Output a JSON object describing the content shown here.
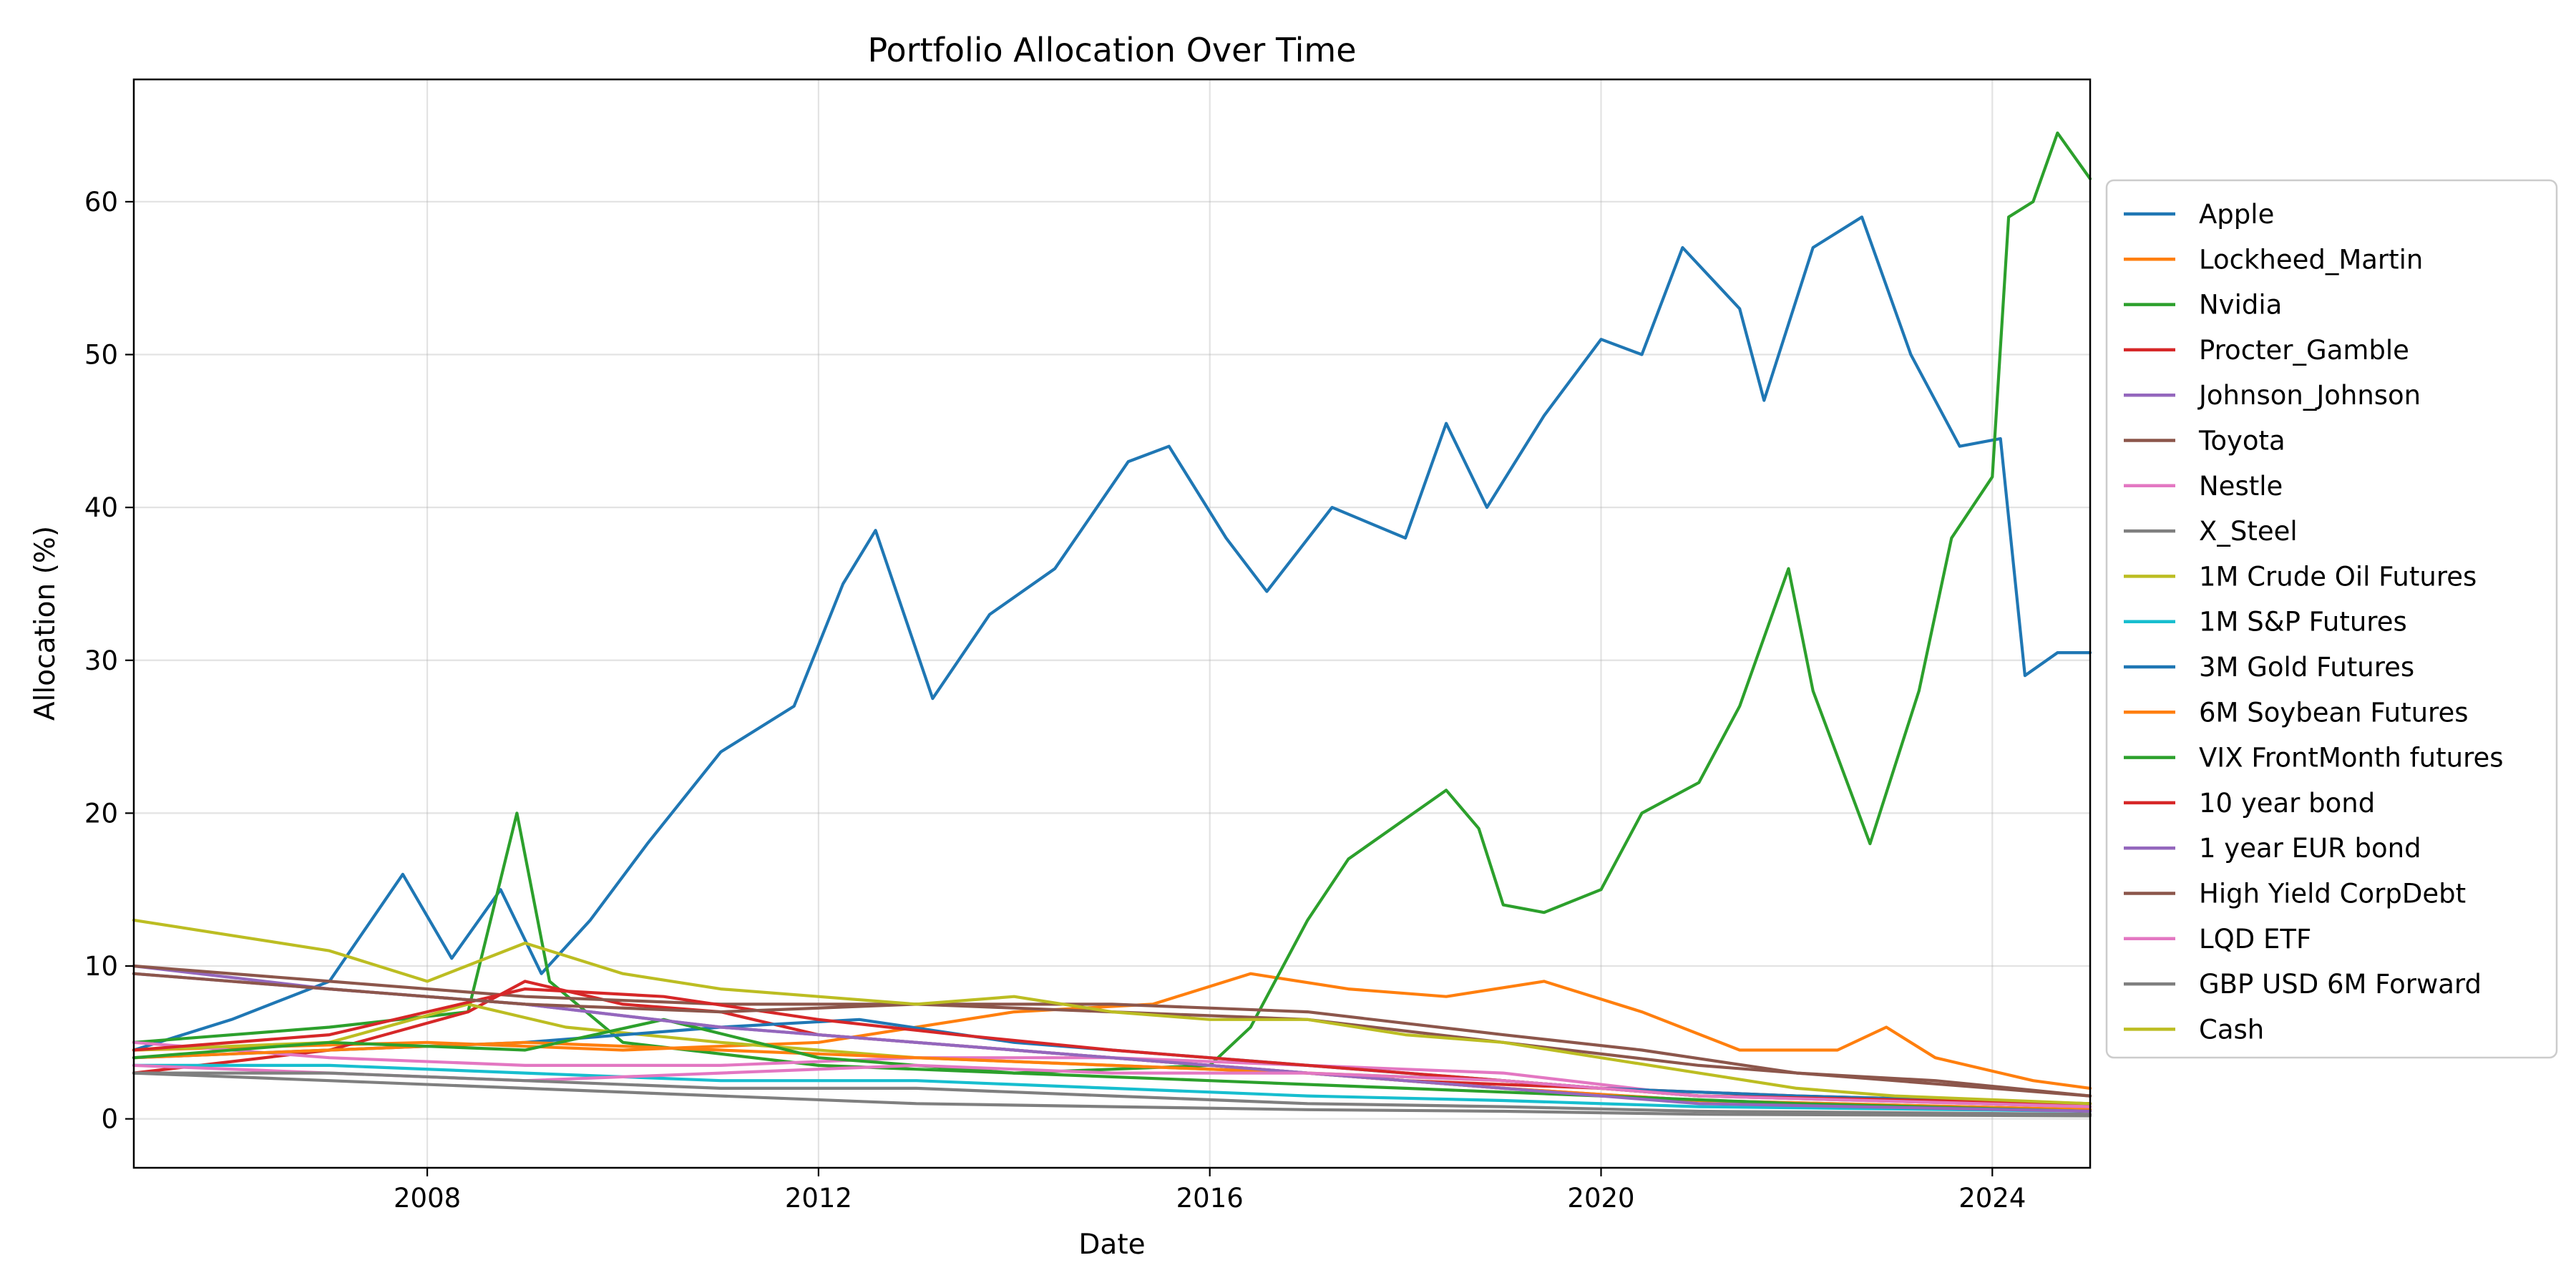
{
  "chart_data": {
    "type": "line",
    "title": "Portfolio Allocation Over Time",
    "xlabel": "Date",
    "ylabel": "Allocation (%)",
    "xlim": [
      "2005-01-01",
      "2025-01-01"
    ],
    "ylim": [
      0,
      68
    ],
    "x_ticks": [
      "2008",
      "2012",
      "2016",
      "2020",
      "2024"
    ],
    "y_ticks": [
      0,
      10,
      20,
      30,
      40,
      50,
      60
    ],
    "grid": true,
    "legend_position": "outside-right",
    "series": [
      {
        "name": "Apple",
        "color": "#1f77b4",
        "points": [
          [
            "2005-01",
            4.5
          ],
          [
            "2006-01",
            6.5
          ],
          [
            "2007-01",
            9.0
          ],
          [
            "2007-10",
            16.0
          ],
          [
            "2008-04",
            10.5
          ],
          [
            "2008-10",
            15.0
          ],
          [
            "2009-03",
            9.5
          ],
          [
            "2009-09",
            13.0
          ],
          [
            "2010-04",
            18.0
          ],
          [
            "2011-01",
            24.0
          ],
          [
            "2011-10",
            27.0
          ],
          [
            "2012-04",
            35.0
          ],
          [
            "2012-08",
            38.5
          ],
          [
            "2013-03",
            27.5
          ],
          [
            "2013-10",
            33.0
          ],
          [
            "2014-06",
            36.0
          ],
          [
            "2015-03",
            43.0
          ],
          [
            "2015-08",
            44.0
          ],
          [
            "2016-03",
            38.0
          ],
          [
            "2016-08",
            34.5
          ],
          [
            "2017-04",
            40.0
          ],
          [
            "2018-01",
            38.0
          ],
          [
            "2018-06",
            45.5
          ],
          [
            "2018-11",
            40.0
          ],
          [
            "2019-06",
            46.0
          ],
          [
            "2020-01",
            51.0
          ],
          [
            "2020-06",
            50.0
          ],
          [
            "2020-11",
            57.0
          ],
          [
            "2021-06",
            53.0
          ],
          [
            "2021-09",
            47.0
          ],
          [
            "2022-03",
            57.0
          ],
          [
            "2022-09",
            59.0
          ],
          [
            "2023-03",
            50.0
          ],
          [
            "2023-09",
            44.0
          ],
          [
            "2024-02",
            44.5
          ],
          [
            "2024-05",
            29.0
          ],
          [
            "2024-09",
            30.5
          ],
          [
            "2025-01",
            30.5
          ]
        ]
      },
      {
        "name": "Lockheed_Martin",
        "color": "#ff7f0e",
        "points": [
          [
            "2005-01",
            4.5
          ],
          [
            "2008-01",
            5.0
          ],
          [
            "2010-01",
            4.5
          ],
          [
            "2012-01",
            5.0
          ],
          [
            "2014-01",
            7.0
          ],
          [
            "2015-06",
            7.5
          ],
          [
            "2016-06",
            9.5
          ],
          [
            "2017-06",
            8.5
          ],
          [
            "2018-06",
            8.0
          ],
          [
            "2019-06",
            9.0
          ],
          [
            "2020-06",
            7.0
          ],
          [
            "2021-06",
            4.5
          ],
          [
            "2022-06",
            4.5
          ],
          [
            "2022-12",
            6.0
          ],
          [
            "2023-06",
            4.0
          ],
          [
            "2024-06",
            2.5
          ],
          [
            "2025-01",
            2.0
          ]
        ]
      },
      {
        "name": "Nvidia",
        "color": "#2ca02c",
        "points": [
          [
            "2005-01",
            5.0
          ],
          [
            "2007-01",
            6.0
          ],
          [
            "2008-06",
            7.0
          ],
          [
            "2008-12",
            20.0
          ],
          [
            "2009-04",
            9.0
          ],
          [
            "2010-01",
            5.0
          ],
          [
            "2012-01",
            3.5
          ],
          [
            "2014-01",
            3.0
          ],
          [
            "2016-01",
            3.5
          ],
          [
            "2016-06",
            6.0
          ],
          [
            "2017-01",
            13.0
          ],
          [
            "2017-06",
            17.0
          ],
          [
            "2018-06",
            21.5
          ],
          [
            "2018-10",
            19.0
          ],
          [
            "2019-01",
            14.0
          ],
          [
            "2019-06",
            13.5
          ],
          [
            "2020-01",
            15.0
          ],
          [
            "2020-06",
            20.0
          ],
          [
            "2021-01",
            22.0
          ],
          [
            "2021-06",
            27.0
          ],
          [
            "2021-12",
            36.0
          ],
          [
            "2022-03",
            28.0
          ],
          [
            "2022-10",
            18.0
          ],
          [
            "2023-04",
            28.0
          ],
          [
            "2023-08",
            38.0
          ],
          [
            "2024-01",
            42.0
          ],
          [
            "2024-03",
            59.0
          ],
          [
            "2024-06",
            60.0
          ],
          [
            "2024-09",
            64.5
          ],
          [
            "2025-01",
            61.5
          ]
        ]
      },
      {
        "name": "Procter_Gamble",
        "color": "#d62728",
        "points": [
          [
            "2005-01",
            3.0
          ],
          [
            "2007-01",
            4.5
          ],
          [
            "2008-06",
            7.0
          ],
          [
            "2009-01",
            9.0
          ],
          [
            "2010-01",
            7.5
          ],
          [
            "2011-01",
            7.0
          ],
          [
            "2012-01",
            5.5
          ],
          [
            "2013-01",
            5.0
          ],
          [
            "2014-01",
            4.5
          ],
          [
            "2016-01",
            3.5
          ],
          [
            "2018-01",
            2.5
          ],
          [
            "2020-01",
            2.0
          ],
          [
            "2022-01",
            1.5
          ],
          [
            "2025-01",
            1.0
          ]
        ]
      },
      {
        "name": "Johnson_Johnson",
        "color": "#9467bd",
        "points": [
          [
            "2005-01",
            10.0
          ],
          [
            "2007-01",
            8.5
          ],
          [
            "2009-01",
            7.5
          ],
          [
            "2011-01",
            6.0
          ],
          [
            "2013-01",
            5.0
          ],
          [
            "2015-01",
            4.0
          ],
          [
            "2017-01",
            3.0
          ],
          [
            "2019-01",
            2.0
          ],
          [
            "2021-01",
            1.2
          ],
          [
            "2025-01",
            0.6
          ]
        ]
      },
      {
        "name": "Toyota",
        "color": "#8c564b",
        "points": [
          [
            "2005-01",
            10.0
          ],
          [
            "2007-01",
            9.0
          ],
          [
            "2009-01",
            8.0
          ],
          [
            "2011-01",
            7.5
          ],
          [
            "2013-01",
            7.5
          ],
          [
            "2015-01",
            7.5
          ],
          [
            "2017-01",
            7.0
          ],
          [
            "2019-01",
            5.5
          ],
          [
            "2020-06",
            4.5
          ],
          [
            "2022-01",
            3.0
          ],
          [
            "2023-06",
            2.5
          ],
          [
            "2025-01",
            1.5
          ]
        ]
      },
      {
        "name": "Nestle",
        "color": "#e377c2",
        "points": [
          [
            "2005-01",
            5.0
          ],
          [
            "2007-01",
            4.0
          ],
          [
            "2009-01",
            3.5
          ],
          [
            "2011-01",
            3.5
          ],
          [
            "2013-01",
            4.0
          ],
          [
            "2015-01",
            4.0
          ],
          [
            "2017-01",
            3.5
          ],
          [
            "2019-01",
            3.0
          ],
          [
            "2021-01",
            1.5
          ],
          [
            "2025-01",
            0.8
          ]
        ]
      },
      {
        "name": "X_Steel",
        "color": "#7f7f7f",
        "points": [
          [
            "2005-01",
            3.0
          ],
          [
            "2007-01",
            2.5
          ],
          [
            "2009-01",
            2.0
          ],
          [
            "2011-01",
            1.5
          ],
          [
            "2013-01",
            1.0
          ],
          [
            "2015-01",
            0.8
          ],
          [
            "2017-01",
            0.6
          ],
          [
            "2019-01",
            0.5
          ],
          [
            "2021-01",
            0.3
          ],
          [
            "2025-01",
            0.2
          ]
        ]
      },
      {
        "name": "1M Crude Oil Futures",
        "color": "#bcbd22",
        "points": [
          [
            "2005-01",
            4.5
          ],
          [
            "2007-01",
            5.0
          ],
          [
            "2008-06",
            7.5
          ],
          [
            "2009-06",
            6.0
          ],
          [
            "2011-01",
            5.0
          ],
          [
            "2013-01",
            4.0
          ],
          [
            "2015-01",
            3.5
          ],
          [
            "2017-01",
            3.0
          ],
          [
            "2019-01",
            2.5
          ],
          [
            "2021-01",
            1.5
          ],
          [
            "2025-01",
            0.8
          ]
        ]
      },
      {
        "name": "1M S&P Futures",
        "color": "#17becf",
        "points": [
          [
            "2005-01",
            3.5
          ],
          [
            "2007-01",
            3.5
          ],
          [
            "2009-01",
            3.0
          ],
          [
            "2011-01",
            2.5
          ],
          [
            "2013-01",
            2.5
          ],
          [
            "2015-01",
            2.0
          ],
          [
            "2017-01",
            1.5
          ],
          [
            "2019-01",
            1.2
          ],
          [
            "2021-01",
            0.8
          ],
          [
            "2025-01",
            0.5
          ]
        ]
      },
      {
        "name": "3M Gold Futures",
        "color": "#1f77b4",
        "points": [
          [
            "2005-01",
            4.0
          ],
          [
            "2007-01",
            4.5
          ],
          [
            "2009-01",
            5.0
          ],
          [
            "2011-01",
            6.0
          ],
          [
            "2012-06",
            6.5
          ],
          [
            "2014-01",
            5.0
          ],
          [
            "2016-01",
            4.0
          ],
          [
            "2018-01",
            3.0
          ],
          [
            "2020-01",
            2.0
          ],
          [
            "2022-01",
            1.5
          ],
          [
            "2025-01",
            1.0
          ]
        ]
      },
      {
        "name": "6M Soybean Futures",
        "color": "#ff7f0e",
        "points": [
          [
            "2005-01",
            4.0
          ],
          [
            "2007-01",
            4.5
          ],
          [
            "2009-01",
            5.0
          ],
          [
            "2011-01",
            4.5
          ],
          [
            "2013-01",
            4.0
          ],
          [
            "2015-01",
            3.5
          ],
          [
            "2017-01",
            3.0
          ],
          [
            "2019-01",
            2.0
          ],
          [
            "2021-01",
            1.2
          ],
          [
            "2025-01",
            0.6
          ]
        ]
      },
      {
        "name": "VIX FrontMonth futures",
        "color": "#2ca02c",
        "points": [
          [
            "2005-01",
            4.0
          ],
          [
            "2007-01",
            5.0
          ],
          [
            "2009-01",
            4.5
          ],
          [
            "2010-06",
            6.5
          ],
          [
            "2012-01",
            4.0
          ],
          [
            "2014-01",
            3.0
          ],
          [
            "2016-01",
            2.5
          ],
          [
            "2018-01",
            2.0
          ],
          [
            "2020-01",
            1.5
          ],
          [
            "2022-01",
            1.0
          ],
          [
            "2025-01",
            0.5
          ]
        ]
      },
      {
        "name": "10 year bond",
        "color": "#d62728",
        "points": [
          [
            "2005-01",
            4.5
          ],
          [
            "2007-01",
            5.5
          ],
          [
            "2009-01",
            8.5
          ],
          [
            "2010-06",
            8.0
          ],
          [
            "2012-01",
            6.5
          ],
          [
            "2013-06",
            5.5
          ],
          [
            "2015-01",
            4.5
          ],
          [
            "2017-01",
            3.5
          ],
          [
            "2019-01",
            2.5
          ],
          [
            "2021-01",
            1.5
          ],
          [
            "2025-01",
            1.0
          ]
        ]
      },
      {
        "name": "1 year EUR bond",
        "color": "#9467bd",
        "points": [
          [
            "2005-01",
            9.5
          ],
          [
            "2007-01",
            8.5
          ],
          [
            "2009-01",
            7.5
          ],
          [
            "2011-01",
            6.0
          ],
          [
            "2013-01",
            5.0
          ],
          [
            "2015-01",
            4.0
          ],
          [
            "2017-01",
            3.0
          ],
          [
            "2019-01",
            2.0
          ],
          [
            "2021-01",
            1.0
          ],
          [
            "2025-01",
            0.5
          ]
        ]
      },
      {
        "name": "High Yield CorpDebt",
        "color": "#8c564b",
        "points": [
          [
            "2005-01",
            9.5
          ],
          [
            "2007-01",
            8.5
          ],
          [
            "2009-01",
            7.5
          ],
          [
            "2011-01",
            7.0
          ],
          [
            "2013-01",
            7.5
          ],
          [
            "2015-01",
            7.0
          ],
          [
            "2017-01",
            6.5
          ],
          [
            "2019-01",
            5.0
          ],
          [
            "2021-01",
            3.5
          ],
          [
            "2023-01",
            2.5
          ],
          [
            "2025-01",
            1.5
          ]
        ]
      },
      {
        "name": "LQD ETF",
        "color": "#e377c2",
        "points": [
          [
            "2005-01",
            3.5
          ],
          [
            "2007-01",
            3.0
          ],
          [
            "2009-01",
            2.5
          ],
          [
            "2011-01",
            3.0
          ],
          [
            "2013-01",
            3.5
          ],
          [
            "2015-01",
            3.0
          ],
          [
            "2017-01",
            3.0
          ],
          [
            "2019-01",
            2.5
          ],
          [
            "2021-01",
            1.5
          ],
          [
            "2025-01",
            0.8
          ]
        ]
      },
      {
        "name": "GBP USD 6M Forward",
        "color": "#7f7f7f",
        "points": [
          [
            "2005-01",
            3.0
          ],
          [
            "2007-01",
            3.0
          ],
          [
            "2009-01",
            2.5
          ],
          [
            "2011-01",
            2.0
          ],
          [
            "2013-01",
            2.0
          ],
          [
            "2015-01",
            1.5
          ],
          [
            "2017-01",
            1.0
          ],
          [
            "2019-01",
            0.8
          ],
          [
            "2021-01",
            0.5
          ],
          [
            "2025-01",
            0.3
          ]
        ]
      },
      {
        "name": "Cash",
        "color": "#bcbd22",
        "points": [
          [
            "2005-01",
            13.0
          ],
          [
            "2006-01",
            12.0
          ],
          [
            "2007-01",
            11.0
          ],
          [
            "2008-01",
            9.0
          ],
          [
            "2009-01",
            11.5
          ],
          [
            "2010-01",
            9.5
          ],
          [
            "2011-01",
            8.5
          ],
          [
            "2012-01",
            8.0
          ],
          [
            "2013-01",
            7.5
          ],
          [
            "2014-01",
            8.0
          ],
          [
            "2015-01",
            7.0
          ],
          [
            "2016-01",
            6.5
          ],
          [
            "2017-01",
            6.5
          ],
          [
            "2018-01",
            5.5
          ],
          [
            "2019-01",
            5.0
          ],
          [
            "2020-01",
            4.0
          ],
          [
            "2021-01",
            3.0
          ],
          [
            "2022-01",
            2.0
          ],
          [
            "2023-01",
            1.5
          ],
          [
            "2025-01",
            1.0
          ]
        ]
      }
    ]
  }
}
